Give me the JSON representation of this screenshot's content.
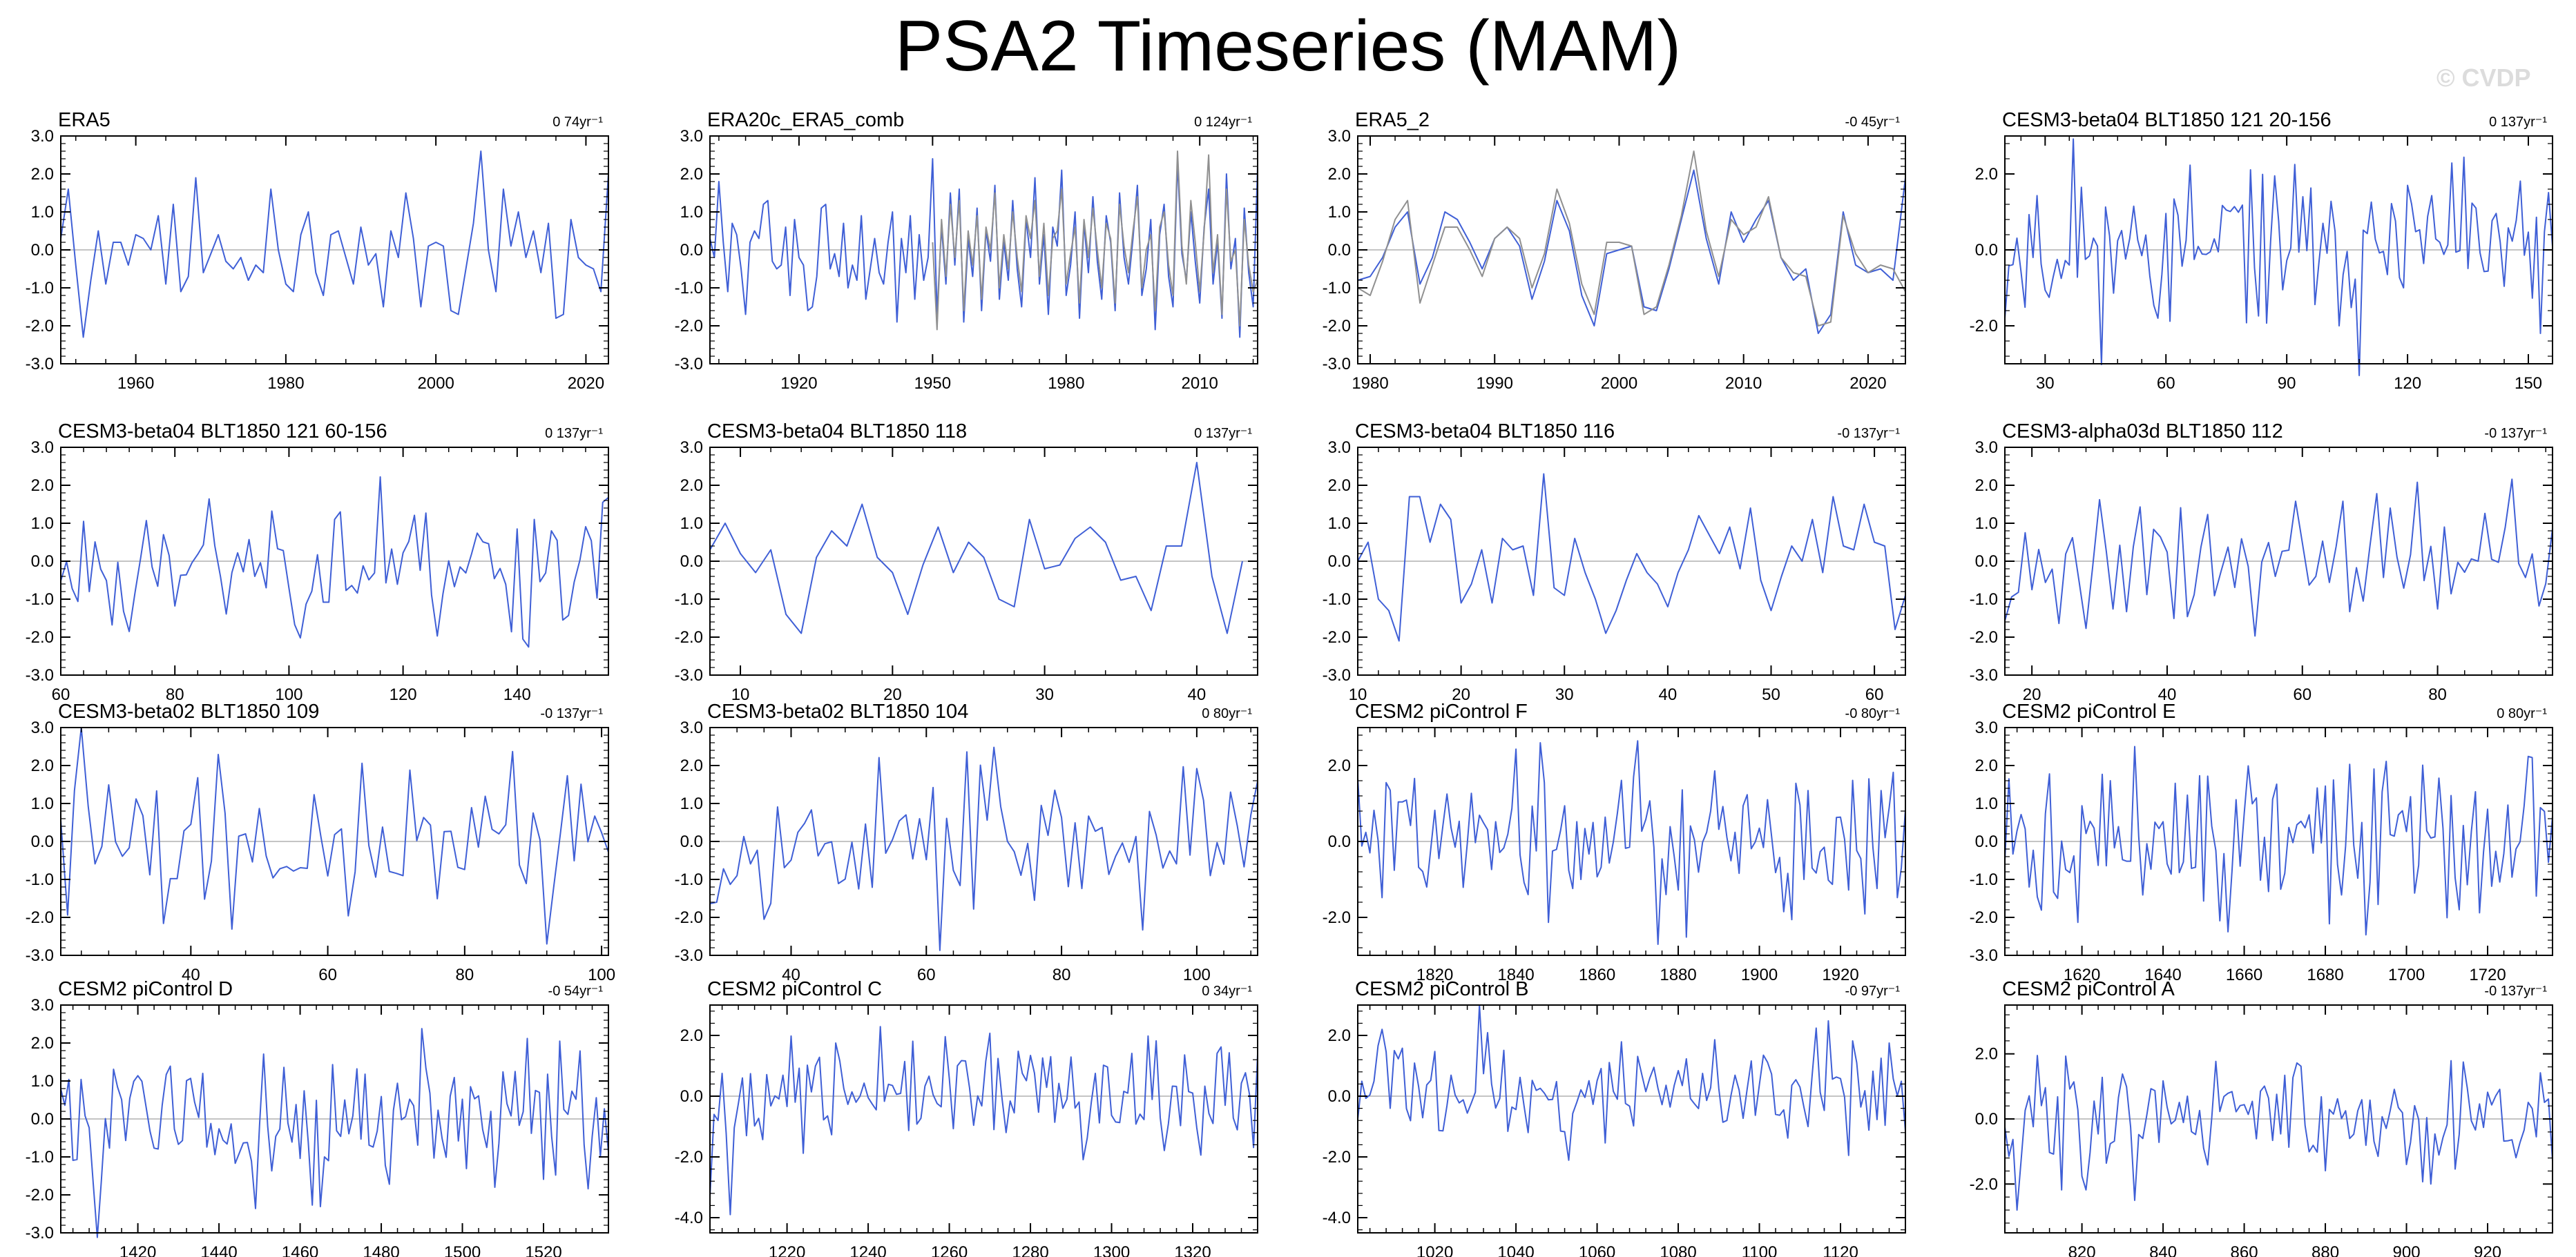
{
  "title": "PSA2 Timeseries (MAM)",
  "watermark": "© CVDP",
  "colors": {
    "line": "#3f5fd6",
    "obs2": "#909090",
    "zero": "#b0b0b0",
    "axis": "#000000"
  },
  "chart_data": [
    {
      "type": "line",
      "title": "ERA5",
      "trend": "0 74yr⁻¹",
      "xlim": [
        1950,
        2023
      ],
      "ylim": [
        -3,
        3
      ],
      "xticks": [
        1960,
        1980,
        2000,
        2020
      ],
      "yticks": [
        3,
        2,
        1,
        0,
        -1,
        -2,
        -3
      ],
      "series": [
        {
          "x0": 1950,
          "dx": 1,
          "values": [
            0.3,
            1.6,
            -0.4,
            -2.3,
            -0.8,
            0.5,
            -0.9,
            0.2,
            0.2,
            -0.4,
            0.4,
            0.3,
            0.0,
            0.9,
            -0.9,
            1.2,
            -1.1,
            -0.7,
            1.9,
            -0.6,
            -0.1,
            0.4,
            -0.3,
            -0.5,
            -0.2,
            -0.8,
            -0.4,
            -0.6,
            1.6,
            0.0,
            -0.9,
            -1.1,
            0.4,
            1.0,
            -0.6,
            -1.2,
            0.4,
            0.5,
            -0.2,
            -0.9,
            0.6,
            -0.4,
            -0.1,
            -1.5,
            0.5,
            -0.2,
            1.5,
            0.3,
            -1.5,
            0.1,
            0.2,
            0.1,
            -1.6,
            -1.7,
            -0.5,
            0.7,
            2.6,
            0.0,
            -1.1,
            1.6,
            0.1,
            1.0,
            -0.2,
            0.5,
            -0.6,
            0.7,
            -1.8,
            -1.7,
            0.8,
            -0.2,
            -0.4,
            -0.5,
            -1.1,
            2.0
          ]
        }
      ]
    },
    {
      "type": "line",
      "title": "ERA20c_ERA5_comb",
      "trend": "0 124yr⁻¹",
      "xlim": [
        1900,
        2023
      ],
      "ylim": [
        -3,
        3
      ],
      "xticks": [
        1920,
        1950,
        1980,
        2010
      ],
      "yticks": [
        3,
        2,
        1,
        0,
        -1,
        -2,
        -3
      ],
      "series": [
        {
          "x0": 1900,
          "dx": 1,
          "values": [
            0.3,
            -0.2,
            1.8,
            0.2,
            -1.1,
            0.7,
            0.4,
            -0.5,
            -1.7,
            0.2,
            0.5,
            0.3,
            1.2,
            1.3,
            -0.3,
            -0.5,
            -0.4,
            0.6,
            -1.2,
            0.8,
            -0.2,
            -0.4,
            -1.6,
            -1.5,
            -0.7,
            1.1,
            1.2,
            -0.5,
            -0.1,
            -0.7,
            0.7,
            -1.0,
            -0.4,
            -0.8,
            0.9,
            -1.3,
            -0.5,
            0.3,
            -0.6,
            -0.9,
            0.2,
            1.0,
            -1.9,
            0.3,
            -0.6,
            0.9,
            -1.3,
            0.4,
            -0.8,
            -0.2,
            2.4,
            -1.7,
            0.6,
            -0.9,
            1.5,
            -0.4,
            1.6,
            -1.9,
            0.3,
            -0.7,
            1.1,
            -1.6,
            0.5,
            -0.3,
            1.7,
            -1.3,
            0.2,
            -0.8,
            1.3,
            -0.5,
            -1.5,
            0.8,
            -0.2,
            1.9,
            -0.9,
            0.4,
            -1.7,
            0.6,
            0.1,
            2.1,
            -1.2,
            -0.4,
            1.0,
            -1.8,
            0.7,
            -0.6,
            1.4,
            -0.3,
            -1.3,
            0.9,
            0.2,
            -1.6,
            1.5,
            -0.2,
            -0.9,
            0.3,
            1.7,
            -1.2,
            -0.5,
            0.8,
            -2.1,
            0.4,
            1.2,
            -0.7,
            -1.5,
            2.3,
            -0.1,
            -0.8,
            1.0,
            -0.3,
            -1.4,
            0.6,
            1.6,
            -0.9,
            0.2,
            -1.8,
            2.0,
            -0.5,
            0.3,
            -2.3,
            1.1,
            -0.6,
            -1.5,
            2.2
          ]
        },
        {
          "x0": 1950,
          "dx": 1,
          "color": "obs2",
          "values": [
            0.2,
            -2.1,
            0.8,
            -0.7,
            1.2,
            -0.2,
            1.3,
            -1.6,
            0.5,
            -0.4,
            0.9,
            -1.3,
            0.6,
            0.0,
            1.5,
            -1.0,
            0.4,
            -0.5,
            1.0,
            -0.2,
            -1.1,
            0.9,
            0.3,
            1.3,
            -0.7,
            0.7,
            -1.2,
            0.3,
            0.5,
            1.6,
            -0.9,
            -0.1,
            0.6,
            -1.4,
            0.8,
            -0.2,
            1.1,
            0.0,
            -1.0,
            0.7,
            0.3,
            -1.4,
            1.2,
            0.1,
            -0.6,
            0.5,
            1.4,
            -1.0,
            0.0,
            0.4,
            -1.6,
            0.6,
            1.0,
            -0.4,
            -1.2,
            2.6,
            0.1,
            -0.9,
            1.3,
            0.2,
            -1.1,
            0.5,
            2.5,
            -0.6,
            0.4,
            -1.7,
            1.6,
            -0.3,
            0.0,
            -2.0,
            0.8,
            -0.4,
            -1.1,
            -0.8
          ]
        }
      ]
    },
    {
      "type": "line",
      "title": "ERA5_2",
      "trend": "-0 45yr⁻¹",
      "xlim": [
        1979,
        2023
      ],
      "ylim": [
        -3,
        3
      ],
      "xticks": [
        1980,
        1990,
        2000,
        2010,
        2020
      ],
      "yticks": [
        3,
        2,
        1,
        0,
        -1,
        -2,
        -3
      ],
      "series": [
        {
          "x0": 1979,
          "dx": 1,
          "values": [
            -0.8,
            -0.7,
            -0.2,
            0.6,
            1.0,
            -0.9,
            -0.2,
            1.0,
            0.8,
            0.2,
            -0.5,
            0.3,
            0.6,
            0.1,
            -1.3,
            -0.3,
            1.3,
            0.5,
            -1.2,
            -2.0,
            -0.1,
            0.0,
            0.1,
            -1.5,
            -1.6,
            -0.5,
            0.8,
            2.1,
            0.3,
            -0.9,
            1.0,
            0.2,
            0.8,
            1.3,
            -0.2,
            -0.8,
            -0.5,
            -2.2,
            -1.7,
            1.0,
            -0.4,
            -0.6,
            -0.5,
            -0.8,
            1.9
          ]
        },
        {
          "x0": 1979,
          "dx": 1,
          "color": "obs2",
          "values": [
            -1.0,
            -1.2,
            -0.3,
            0.8,
            1.3,
            -1.4,
            -0.4,
            0.6,
            0.6,
            0.0,
            -0.7,
            0.3,
            0.6,
            0.3,
            -1.0,
            -0.1,
            1.6,
            0.7,
            -0.9,
            -1.7,
            0.2,
            0.2,
            0.1,
            -1.7,
            -1.5,
            -0.4,
            0.9,
            2.6,
            0.5,
            -0.7,
            0.8,
            0.4,
            0.6,
            1.4,
            -0.2,
            -0.6,
            -0.7,
            -2.0,
            -1.9,
            0.9,
            -0.1,
            -0.6,
            -0.4,
            -0.5,
            -1.1
          ]
        }
      ]
    },
    {
      "type": "line",
      "title": "CESM3-beta04 BLT1850 121 20-156",
      "trend": "0 137yr⁻¹",
      "xlim": [
        20,
        156
      ],
      "ylim": [
        -3,
        3
      ],
      "xticks": [
        30,
        60,
        90,
        120,
        150
      ],
      "yticks": [
        2,
        0,
        -2
      ],
      "gen": {
        "seed": 11,
        "amp": 1.0
      }
    },
    {
      "type": "line",
      "title": "CESM3-beta04 BLT1850 121 60-156",
      "trend": "0 137yr⁻¹",
      "xlim": [
        60,
        156
      ],
      "ylim": [
        -3,
        3
      ],
      "xticks": [
        60,
        80,
        100,
        120,
        140
      ],
      "yticks": [
        3,
        2,
        1,
        0,
        -1,
        -2,
        -3
      ],
      "gen": {
        "seed": 23,
        "amp": 1.0
      }
    },
    {
      "type": "line",
      "title": "CESM3-beta04 BLT1850 118",
      "trend": "0 137yr⁻¹",
      "xlim": [
        8,
        44
      ],
      "ylim": [
        -3,
        3
      ],
      "xticks": [
        10,
        20,
        30,
        40
      ],
      "yticks": [
        3,
        2,
        1,
        0,
        -1,
        -2,
        -3
      ],
      "series": [
        {
          "x0": 8,
          "dx": 1,
          "values": [
            0.3,
            1.0,
            0.2,
            -0.3,
            0.3,
            -1.4,
            -1.9,
            0.1,
            0.8,
            0.4,
            1.5,
            0.1,
            -0.3,
            -1.4,
            -0.1,
            0.9,
            -0.3,
            0.5,
            0.1,
            -1.0,
            -1.2,
            1.1,
            -0.2,
            -0.1,
            0.6,
            0.9,
            0.5,
            -0.5,
            -0.4,
            -1.3,
            0.4,
            0.4,
            2.6,
            -0.4,
            -1.9,
            0.0
          ]
        }
      ]
    },
    {
      "type": "line",
      "title": "CESM3-beta04 BLT1850 116",
      "trend": "-0 137yr⁻¹",
      "xlim": [
        10,
        63
      ],
      "ylim": [
        -3,
        3
      ],
      "xticks": [
        10,
        20,
        30,
        40,
        50,
        60
      ],
      "yticks": [
        3,
        2,
        1,
        0,
        -1,
        -2,
        -3
      ],
      "series": [
        {
          "x0": 10,
          "dx": 1,
          "values": [
            0.0,
            0.5,
            -1.0,
            -1.3,
            -2.1,
            1.7,
            1.7,
            0.5,
            1.5,
            1.1,
            -1.1,
            -0.6,
            0.3,
            -1.1,
            0.6,
            0.3,
            0.4,
            -0.9,
            2.3,
            -0.7,
            -0.9,
            0.6,
            -0.3,
            -1.0,
            -1.9,
            -1.3,
            -0.5,
            0.2,
            -0.3,
            -0.6,
            -1.2,
            -0.3,
            0.3,
            1.2,
            0.7,
            0.2,
            0.9,
            -0.2,
            1.4,
            -0.5,
            -1.3,
            -0.4,
            0.4,
            0.0,
            1.1,
            -0.3,
            1.7,
            0.4,
            0.3,
            1.5,
            0.5,
            0.4,
            -1.8,
            -0.9
          ]
        }
      ]
    },
    {
      "type": "line",
      "title": "CESM3-alpha03d BLT1850 112",
      "trend": "-0 137yr⁻¹",
      "xlim": [
        16,
        97
      ],
      "ylim": [
        -3,
        3
      ],
      "xticks": [
        20,
        40,
        60,
        80
      ],
      "yticks": [
        3,
        2,
        1,
        0,
        -1,
        -2,
        -3
      ],
      "gen": {
        "seed": 37,
        "amp": 1.0
      }
    },
    {
      "type": "line",
      "title": "CESM3-beta02 BLT1850 109",
      "trend": "-0 137yr⁻¹",
      "xlim": [
        21,
        101
      ],
      "ylim": [
        -3,
        3
      ],
      "xticks": [
        40,
        60,
        80,
        100
      ],
      "yticks": [
        3,
        2,
        1,
        0,
        -1,
        -2,
        -3
      ],
      "gen": {
        "seed": 41,
        "amp": 1.0
      }
    },
    {
      "type": "line",
      "title": "CESM3-beta02 BLT1850 104",
      "trend": "0 80yr⁻¹",
      "xlim": [
        28,
        109
      ],
      "ylim": [
        -3,
        3
      ],
      "xticks": [
        40,
        60,
        80,
        100
      ],
      "yticks": [
        3,
        2,
        1,
        0,
        -1,
        -2,
        -3
      ],
      "gen": {
        "seed": 53,
        "amp": 1.05
      }
    },
    {
      "type": "line",
      "title": "CESM2 piControl F",
      "trend": "-0 80yr⁻¹",
      "xlim": [
        1801,
        1936
      ],
      "ylim": [
        -3,
        3
      ],
      "xticks": [
        1820,
        1840,
        1860,
        1880,
        1900,
        1920
      ],
      "yticks": [
        2,
        0,
        -2
      ],
      "gen": {
        "seed": 61,
        "amp": 1.05
      }
    },
    {
      "type": "line",
      "title": "CESM2 piControl E",
      "trend": "0 80yr⁻¹",
      "xlim": [
        1601,
        1736
      ],
      "ylim": [
        -3,
        3
      ],
      "xticks": [
        1620,
        1640,
        1660,
        1680,
        1700,
        1720
      ],
      "yticks": [
        3,
        2,
        1,
        0,
        -1,
        -2,
        -3
      ],
      "gen": {
        "seed": 71,
        "amp": 1.0
      }
    },
    {
      "type": "line",
      "title": "CESM2 piControl D",
      "trend": "-0 54yr⁻¹",
      "xlim": [
        1401,
        1536
      ],
      "ylim": [
        -3,
        3
      ],
      "xticks": [
        1420,
        1440,
        1460,
        1480,
        1500,
        1520
      ],
      "yticks": [
        3,
        2,
        1,
        0,
        -1,
        -2,
        -3
      ],
      "gen": {
        "seed": 83,
        "amp": 1.0
      }
    },
    {
      "type": "line",
      "title": "CESM2 piControl C",
      "trend": "0 34yr⁻¹",
      "xlim": [
        1201,
        1336
      ],
      "ylim": [
        -4.5,
        3
      ],
      "xticks": [
        1220,
        1240,
        1260,
        1280,
        1300,
        1320
      ],
      "yticks": [
        2,
        0,
        -2,
        -4
      ],
      "gen": {
        "seed": 97,
        "amp": 1.05
      }
    },
    {
      "type": "line",
      "title": "CESM2 piControl B",
      "trend": "-0 97yr⁻¹",
      "xlim": [
        1001,
        1136
      ],
      "ylim": [
        -4.5,
        3
      ],
      "xticks": [
        1020,
        1040,
        1060,
        1080,
        1100,
        1120
      ],
      "yticks": [
        2,
        0,
        -2,
        -4
      ],
      "gen": {
        "seed": 103,
        "amp": 1.0
      }
    },
    {
      "type": "line",
      "title": "CESM2 piControl A",
      "trend": "-0 137yr⁻¹",
      "xlim": [
        801,
        936
      ],
      "ylim": [
        -3.5,
        3.5
      ],
      "xticks": [
        820,
        840,
        860,
        880,
        900,
        920
      ],
      "yticks": [
        2,
        0,
        -2
      ],
      "gen": {
        "seed": 113,
        "amp": 1.0
      }
    }
  ]
}
